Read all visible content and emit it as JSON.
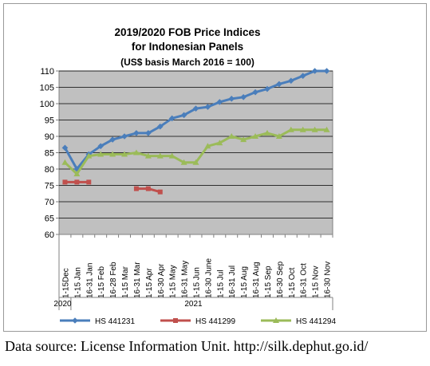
{
  "chart_data": {
    "type": "line",
    "title": "2019/2020 FOB Price Indices",
    "subtitle": "for Indonesian Panels",
    "basis": "(US$ basis March 2016 = 100)",
    "ylim": [
      60,
      110
    ],
    "yticks": [
      60,
      65,
      70,
      75,
      80,
      85,
      90,
      95,
      100,
      105,
      110
    ],
    "grid": true,
    "background": "#c0c0c0",
    "legend_position": "bottom",
    "categories": [
      "1-15Dec",
      "1-15 Jan",
      "16-31 Jan",
      "1-15 Feb",
      "16-28 Feb",
      "1-15 Mar",
      "16-31 Mar",
      "1-15 Apr",
      "16-30 Apr",
      "1-15 May",
      "16-31 May",
      "1-15 Jun",
      "16-30 June",
      "1-15 Jul",
      "16-31 Jul",
      "1-15 Aug",
      "16-31 Aug",
      "1-15 Sep",
      "16-30 Sep",
      "1-15 Oct",
      "16-31 Oct",
      "1-15 Nov",
      "16-30 Nov"
    ],
    "year_labels": [
      {
        "label": "2020",
        "category_index": 0
      },
      {
        "label": "2021",
        "category_index": 11
      }
    ],
    "series": [
      {
        "name": "HS 441231",
        "color": "#4a7ebb",
        "marker": "diamond",
        "values": [
          86.5,
          80,
          84.5,
          87,
          89,
          90,
          91,
          91,
          93,
          95.5,
          96.5,
          98.5,
          99,
          100.5,
          101.5,
          102,
          103.5,
          104.5,
          106,
          107,
          108.5,
          110,
          110
        ]
      },
      {
        "name": "HS 441299",
        "color": "#c0504d",
        "marker": "square",
        "values": [
          76,
          76,
          76,
          null,
          null,
          null,
          74,
          74,
          73,
          null,
          null,
          null,
          null,
          null,
          null,
          null,
          null,
          null,
          null,
          null,
          null,
          null,
          null
        ]
      },
      {
        "name": "HS 441294",
        "color": "#9bbb59",
        "marker": "triangle",
        "values": [
          82,
          78.5,
          84,
          84.5,
          84.5,
          84.5,
          85,
          84,
          84,
          84,
          82,
          82,
          87,
          88,
          90,
          89,
          90,
          91,
          90,
          92,
          92,
          92,
          92
        ]
      }
    ]
  },
  "source_note": "Data source: License Information Unit. http://silk.dephut.go.id/"
}
